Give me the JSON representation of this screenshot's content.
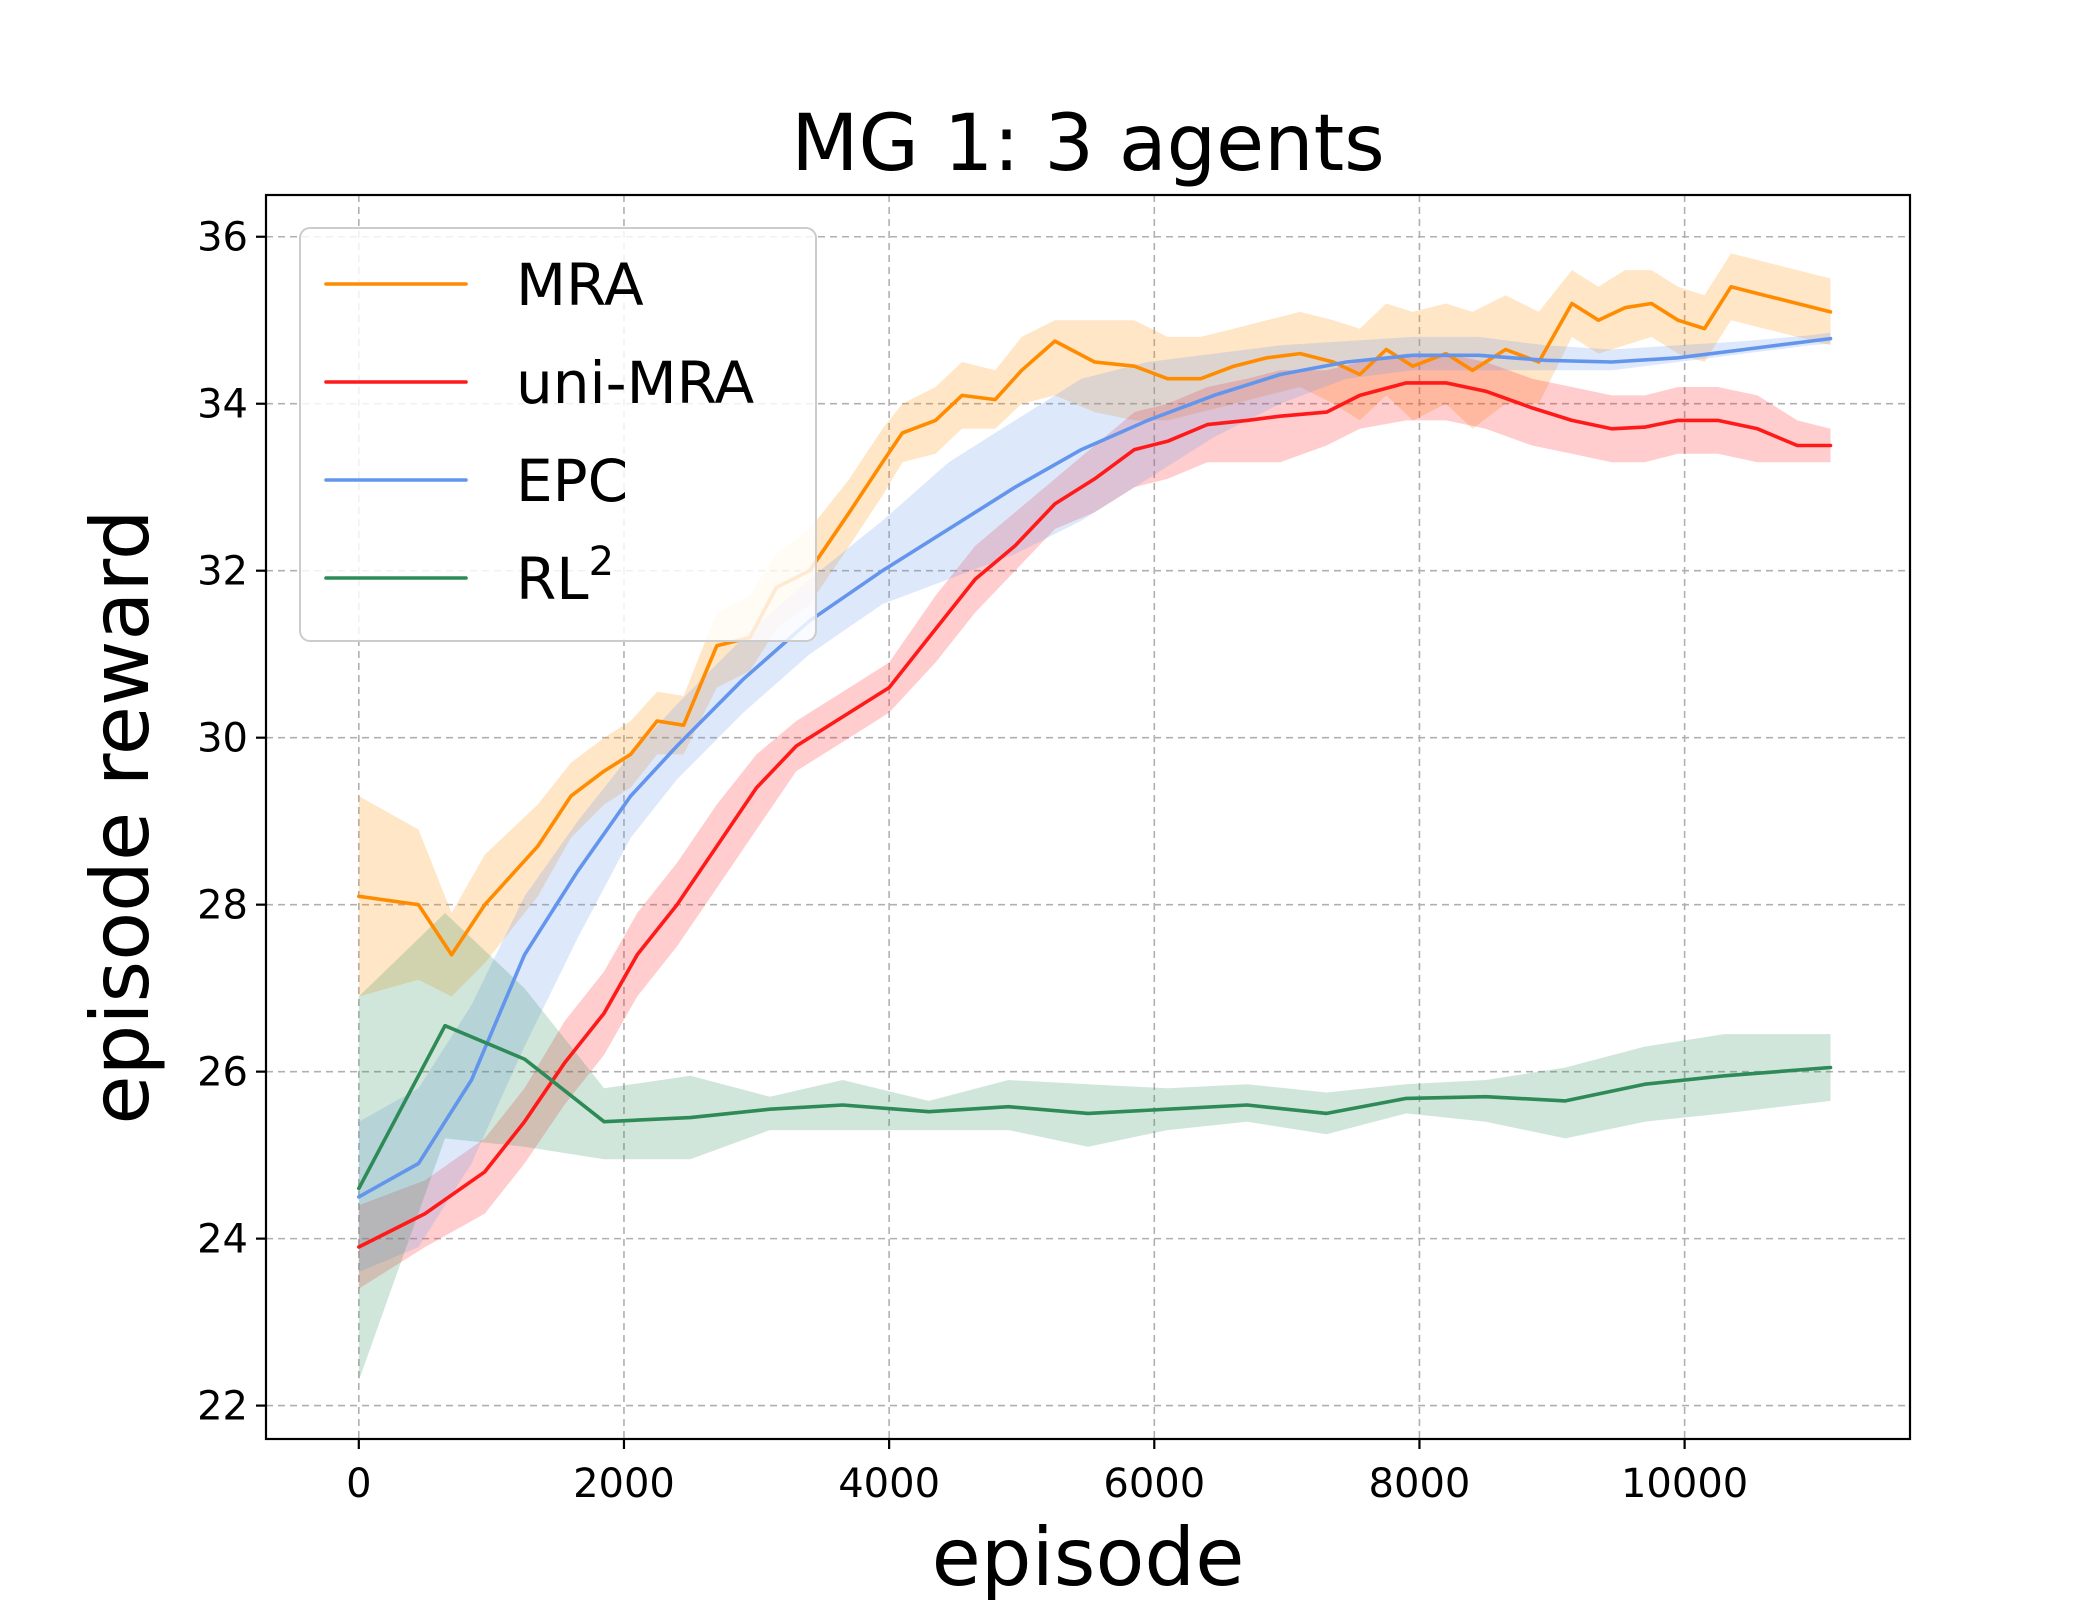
{
  "chart_data": {
    "type": "line",
    "title": "MG 1: 3 agents",
    "xlabel": "episode",
    "ylabel": "episode reward",
    "xlim": [
      -700,
      11700
    ],
    "ylim": [
      21.6,
      36.5
    ],
    "xticks": [
      0,
      2000,
      4000,
      6000,
      8000,
      10000
    ],
    "xtick_labels": [
      "0",
      "2000",
      "4000",
      "6000",
      "8000",
      "10000"
    ],
    "yticks": [
      22,
      24,
      26,
      28,
      30,
      32,
      34,
      36
    ],
    "ytick_labels": [
      "22",
      "24",
      "26",
      "28",
      "30",
      "32",
      "34",
      "36"
    ],
    "grid": true,
    "legend_position": "top-left",
    "series": [
      {
        "name": "MRA",
        "legend_label": "MRA",
        "legend_superscript": "",
        "color": "#ff8c00",
        "x": [
          0,
          450,
          700,
          950,
          1350,
          1600,
          1850,
          2050,
          2250,
          2450,
          2700,
          2950,
          3150,
          3400,
          3700,
          3950,
          4100,
          4350,
          4550,
          4800,
          5000,
          5250,
          5550,
          5850,
          6100,
          6350,
          6600,
          6850,
          7100,
          7350,
          7550,
          7750,
          7950,
          8200,
          8400,
          8650,
          8900,
          9150,
          9350,
          9550,
          9750,
          9950,
          10150,
          10350,
          10600,
          10850,
          11100
        ],
        "values": [
          28.1,
          28.0,
          27.4,
          28.0,
          28.7,
          29.3,
          29.6,
          29.8,
          30.2,
          30.15,
          31.1,
          31.2,
          31.8,
          32.0,
          32.7,
          33.3,
          33.65,
          33.8,
          34.1,
          34.05,
          34.4,
          34.75,
          34.5,
          34.45,
          34.3,
          34.3,
          34.45,
          34.55,
          34.6,
          34.5,
          34.35,
          34.65,
          34.45,
          34.6,
          34.4,
          34.65,
          34.5,
          35.2,
          35.0,
          35.15,
          35.2,
          35.0,
          34.9,
          35.4,
          35.3,
          35.2,
          35.1
        ],
        "lower": [
          26.9,
          27.1,
          26.9,
          27.3,
          28.1,
          28.8,
          29.2,
          29.4,
          29.8,
          29.8,
          30.6,
          30.8,
          31.3,
          31.6,
          32.3,
          32.9,
          33.3,
          33.4,
          33.7,
          33.7,
          34.0,
          34.1,
          33.9,
          33.8,
          33.8,
          33.9,
          34.0,
          34.1,
          34.2,
          34.0,
          33.8,
          34.1,
          33.8,
          34.0,
          33.7,
          34.0,
          34.0,
          34.8,
          34.6,
          34.7,
          34.8,
          34.6,
          34.5,
          35.0,
          34.9,
          34.8,
          34.7
        ],
        "upper": [
          29.3,
          28.9,
          27.9,
          28.6,
          29.2,
          29.7,
          30.0,
          30.2,
          30.55,
          30.5,
          31.5,
          31.7,
          32.2,
          32.5,
          33.1,
          33.7,
          34.0,
          34.2,
          34.5,
          34.4,
          34.8,
          35.0,
          35.0,
          35.0,
          34.8,
          34.8,
          34.9,
          35.0,
          35.1,
          35.0,
          34.9,
          35.2,
          35.1,
          35.2,
          35.1,
          35.3,
          35.1,
          35.6,
          35.4,
          35.6,
          35.6,
          35.4,
          35.3,
          35.8,
          35.7,
          35.6,
          35.5
        ]
      },
      {
        "name": "uni-MRA",
        "legend_label": "uni-MRA",
        "legend_superscript": "",
        "color": "#ff1a1a",
        "x": [
          0,
          500,
          950,
          1250,
          1550,
          1850,
          2100,
          2400,
          2700,
          3000,
          3300,
          3700,
          4000,
          4350,
          4650,
          4950,
          5250,
          5550,
          5850,
          6100,
          6400,
          6700,
          6950,
          7300,
          7550,
          7900,
          8200,
          8500,
          8850,
          9150,
          9450,
          9700,
          9950,
          10250,
          10550,
          10850,
          11100
        ],
        "values": [
          23.9,
          24.3,
          24.8,
          25.4,
          26.1,
          26.7,
          27.4,
          28.0,
          28.7,
          29.4,
          29.9,
          30.3,
          30.6,
          31.3,
          31.9,
          32.3,
          32.8,
          33.1,
          33.45,
          33.55,
          33.75,
          33.8,
          33.85,
          33.9,
          34.1,
          34.25,
          34.25,
          34.15,
          33.95,
          33.8,
          33.7,
          33.72,
          33.8,
          33.8,
          33.7,
          33.5,
          33.5
        ],
        "lower": [
          23.4,
          23.9,
          24.3,
          24.9,
          25.6,
          26.2,
          26.9,
          27.5,
          28.2,
          28.9,
          29.6,
          30.0,
          30.3,
          30.9,
          31.5,
          32.0,
          32.5,
          32.7,
          33.0,
          33.1,
          33.3,
          33.3,
          33.3,
          33.5,
          33.7,
          33.8,
          33.8,
          33.7,
          33.5,
          33.4,
          33.3,
          33.3,
          33.4,
          33.4,
          33.3,
          33.3,
          33.3
        ],
        "upper": [
          24.4,
          24.7,
          25.2,
          25.8,
          26.6,
          27.2,
          27.9,
          28.5,
          29.2,
          29.8,
          30.2,
          30.6,
          30.9,
          31.7,
          32.3,
          32.7,
          33.1,
          33.5,
          33.9,
          34.0,
          34.2,
          34.3,
          34.4,
          34.4,
          34.5,
          34.6,
          34.6,
          34.5,
          34.3,
          34.2,
          34.1,
          34.1,
          34.2,
          34.2,
          34.1,
          33.8,
          33.7
        ]
      },
      {
        "name": "EPC",
        "legend_label": "EPC",
        "legend_superscript": "",
        "color": "#6495ed",
        "x": [
          0,
          450,
          850,
          1250,
          1650,
          2050,
          2400,
          2900,
          3400,
          3950,
          4450,
          4950,
          5450,
          5950,
          6450,
          6950,
          7450,
          7950,
          8450,
          8950,
          9450,
          9950,
          10450,
          10950,
          11100
        ],
        "values": [
          24.5,
          24.9,
          25.9,
          27.4,
          28.4,
          29.3,
          29.9,
          30.7,
          31.4,
          32.0,
          32.5,
          33.0,
          33.45,
          33.8,
          34.1,
          34.35,
          34.5,
          34.58,
          34.58,
          34.52,
          34.5,
          34.55,
          34.65,
          34.75,
          34.78
        ],
        "lower": [
          23.6,
          23.9,
          24.9,
          26.3,
          27.6,
          28.8,
          29.5,
          30.3,
          31.0,
          31.6,
          31.9,
          32.2,
          32.6,
          33.1,
          33.6,
          34.0,
          34.3,
          34.4,
          34.4,
          34.4,
          34.4,
          34.5,
          34.6,
          34.7,
          34.72
        ],
        "upper": [
          25.4,
          25.8,
          26.8,
          28.1,
          29.0,
          29.8,
          30.4,
          31.2,
          31.9,
          32.6,
          33.3,
          33.8,
          34.3,
          34.5,
          34.6,
          34.7,
          34.75,
          34.8,
          34.8,
          34.7,
          34.65,
          34.7,
          34.75,
          34.82,
          34.85
        ]
      },
      {
        "name": "RL2",
        "legend_label": "RL",
        "legend_superscript": "2",
        "color": "#2e8b57",
        "x": [
          0,
          650,
          1250,
          1850,
          2500,
          3100,
          3650,
          4300,
          4900,
          5500,
          6100,
          6700,
          7300,
          7900,
          8500,
          9100,
          9700,
          10300,
          11100
        ],
        "values": [
          24.6,
          26.55,
          26.15,
          25.4,
          25.45,
          25.55,
          25.6,
          25.52,
          25.58,
          25.5,
          25.55,
          25.6,
          25.5,
          25.68,
          25.7,
          25.65,
          25.85,
          25.95,
          26.05
        ],
        "lower": [
          22.3,
          25.2,
          25.1,
          24.95,
          24.95,
          25.3,
          25.3,
          25.3,
          25.3,
          25.1,
          25.3,
          25.4,
          25.25,
          25.5,
          25.4,
          25.2,
          25.4,
          25.5,
          25.65
        ],
        "upper": [
          26.9,
          27.9,
          27.0,
          25.8,
          25.95,
          25.7,
          25.9,
          25.65,
          25.9,
          25.85,
          25.8,
          25.85,
          25.75,
          25.85,
          25.9,
          26.05,
          26.3,
          26.45,
          26.45
        ]
      }
    ]
  }
}
